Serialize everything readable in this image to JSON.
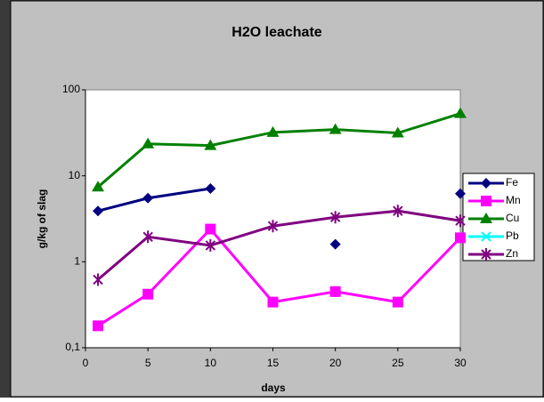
{
  "chart_data": {
    "type": "line",
    "title": "H2O leachate",
    "x_label": "days",
    "y_label": "g/kg of slag",
    "x": [
      1,
      5,
      10,
      15,
      20,
      25,
      30
    ],
    "series": [
      {
        "name": "Fe",
        "color": "#000080",
        "marker": "diamond",
        "values": [
          3.9,
          5.5,
          7.1,
          null,
          1.6,
          null,
          6.2
        ]
      },
      {
        "name": "Mn",
        "color": "#ff00ff",
        "marker": "square",
        "values": [
          0.18,
          0.42,
          2.4,
          0.34,
          0.45,
          0.34,
          1.9
        ]
      },
      {
        "name": "Cu",
        "color": "#008000",
        "marker": "triangle",
        "values": [
          7.4,
          23.5,
          22.5,
          32,
          34.5,
          31.5,
          53
        ]
      },
      {
        "name": "Pb",
        "color": "#00ffff",
        "marker": "x",
        "values": [
          null,
          null,
          null,
          null,
          null,
          null,
          null
        ]
      },
      {
        "name": "Zn",
        "color": "#800080",
        "marker": "star",
        "values": [
          0.62,
          1.95,
          1.55,
          2.6,
          3.3,
          3.9,
          3.0
        ]
      }
    ],
    "xlim": [
      0,
      30
    ],
    "xticks": [
      0,
      5,
      10,
      15,
      20,
      25,
      30
    ],
    "ylim": [
      0.1,
      100
    ],
    "yticks": [
      {
        "value": 0.1,
        "label": "0,1"
      },
      1,
      10,
      100
    ],
    "yscale": "log",
    "grid": false,
    "legend": "right"
  }
}
